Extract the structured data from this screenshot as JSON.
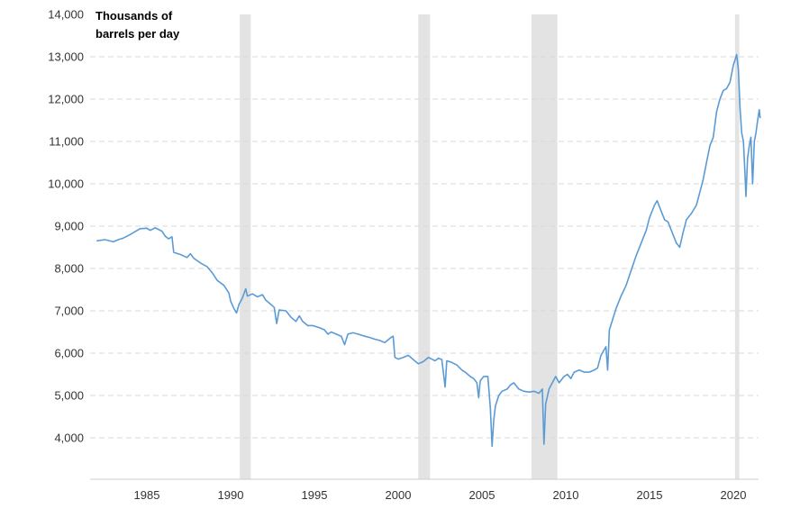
{
  "chart_data": {
    "type": "line",
    "title": "",
    "unit_label_line1": "Thousands of",
    "unit_label_line2": "barrels per day",
    "ylim": [
      3000,
      14000
    ],
    "xlim": [
      1982.0,
      2021.6
    ],
    "y_ticks": [
      {
        "value": 14000,
        "label": "14,000"
      },
      {
        "value": 13000,
        "label": "13,000"
      },
      {
        "value": 12000,
        "label": "12,000"
      },
      {
        "value": 11000,
        "label": "11,000"
      },
      {
        "value": 10000,
        "label": "10,000"
      },
      {
        "value": 9000,
        "label": "9,000"
      },
      {
        "value": 8000,
        "label": "8,000"
      },
      {
        "value": 7000,
        "label": "7,000"
      },
      {
        "value": 6000,
        "label": "6,000"
      },
      {
        "value": 5000,
        "label": "5,000"
      },
      {
        "value": 4000,
        "label": "4,000"
      }
    ],
    "x_ticks": [
      {
        "value": 1985,
        "label": "1985"
      },
      {
        "value": 1990,
        "label": "1990"
      },
      {
        "value": 1995,
        "label": "1995"
      },
      {
        "value": 2000,
        "label": "2000"
      },
      {
        "value": 2005,
        "label": "2005"
      },
      {
        "value": 2010,
        "label": "2010"
      },
      {
        "value": 2015,
        "label": "2015"
      },
      {
        "value": 2020,
        "label": "2020"
      }
    ],
    "grid": true,
    "recessions": [
      {
        "start": 1990.55,
        "end": 1991.2
      },
      {
        "start": 2001.2,
        "end": 2001.9
      },
      {
        "start": 2007.95,
        "end": 2009.5
      },
      {
        "start": 2020.1,
        "end": 2020.35
      }
    ],
    "series": [
      {
        "color": "#5b9bd5",
        "points": [
          [
            1982.0,
            8650
          ],
          [
            1982.5,
            8680
          ],
          [
            1983.0,
            8630
          ],
          [
            1983.3,
            8680
          ],
          [
            1983.6,
            8720
          ],
          [
            1984.0,
            8800
          ],
          [
            1984.3,
            8870
          ],
          [
            1984.6,
            8940
          ],
          [
            1985.0,
            8950
          ],
          [
            1985.2,
            8900
          ],
          [
            1985.5,
            8960
          ],
          [
            1985.9,
            8880
          ],
          [
            1986.1,
            8760
          ],
          [
            1986.3,
            8700
          ],
          [
            1986.5,
            8750
          ],
          [
            1986.6,
            8380
          ],
          [
            1987.0,
            8330
          ],
          [
            1987.4,
            8260
          ],
          [
            1987.6,
            8350
          ],
          [
            1987.8,
            8240
          ],
          [
            1988.2,
            8130
          ],
          [
            1988.6,
            8040
          ],
          [
            1988.9,
            7900
          ],
          [
            1989.2,
            7720
          ],
          [
            1989.6,
            7600
          ],
          [
            1989.9,
            7420
          ],
          [
            1990.0,
            7230
          ],
          [
            1990.2,
            7050
          ],
          [
            1990.35,
            6950
          ],
          [
            1990.5,
            7150
          ],
          [
            1990.7,
            7300
          ],
          [
            1990.9,
            7520
          ],
          [
            1991.0,
            7350
          ],
          [
            1991.3,
            7400
          ],
          [
            1991.6,
            7330
          ],
          [
            1991.9,
            7380
          ],
          [
            1992.1,
            7250
          ],
          [
            1992.4,
            7150
          ],
          [
            1992.6,
            7080
          ],
          [
            1992.75,
            6700
          ],
          [
            1992.9,
            7020
          ],
          [
            1993.3,
            7000
          ],
          [
            1993.6,
            6850
          ],
          [
            1993.9,
            6750
          ],
          [
            1994.1,
            6880
          ],
          [
            1994.3,
            6750
          ],
          [
            1994.6,
            6650
          ],
          [
            1994.9,
            6650
          ],
          [
            1995.3,
            6600
          ],
          [
            1995.6,
            6550
          ],
          [
            1995.8,
            6450
          ],
          [
            1996.0,
            6500
          ],
          [
            1996.3,
            6450
          ],
          [
            1996.6,
            6400
          ],
          [
            1996.8,
            6200
          ],
          [
            1997.0,
            6450
          ],
          [
            1997.3,
            6480
          ],
          [
            1997.6,
            6450
          ],
          [
            1998.0,
            6400
          ],
          [
            1998.3,
            6370
          ],
          [
            1998.6,
            6330
          ],
          [
            1998.9,
            6300
          ],
          [
            1999.2,
            6250
          ],
          [
            1999.5,
            6350
          ],
          [
            1999.7,
            6400
          ],
          [
            1999.8,
            5900
          ],
          [
            2000.0,
            5860
          ],
          [
            2000.3,
            5900
          ],
          [
            2000.6,
            5950
          ],
          [
            2000.9,
            5850
          ],
          [
            2001.2,
            5750
          ],
          [
            2001.5,
            5800
          ],
          [
            2001.8,
            5900
          ],
          [
            2002.0,
            5860
          ],
          [
            2002.2,
            5820
          ],
          [
            2002.4,
            5880
          ],
          [
            2002.6,
            5850
          ],
          [
            2002.8,
            5200
          ],
          [
            2002.9,
            5820
          ],
          [
            2003.2,
            5780
          ],
          [
            2003.5,
            5720
          ],
          [
            2003.8,
            5600
          ],
          [
            2004.0,
            5550
          ],
          [
            2004.3,
            5450
          ],
          [
            2004.5,
            5400
          ],
          [
            2004.7,
            5300
          ],
          [
            2004.8,
            4950
          ],
          [
            2004.9,
            5350
          ],
          [
            2005.1,
            5450
          ],
          [
            2005.35,
            5450
          ],
          [
            2005.5,
            4700
          ],
          [
            2005.6,
            3800
          ],
          [
            2005.7,
            4400
          ],
          [
            2005.8,
            4750
          ],
          [
            2006.0,
            5000
          ],
          [
            2006.2,
            5100
          ],
          [
            2006.5,
            5150
          ],
          [
            2006.7,
            5250
          ],
          [
            2006.9,
            5300
          ],
          [
            2007.2,
            5150
          ],
          [
            2007.5,
            5100
          ],
          [
            2007.8,
            5080
          ],
          [
            2008.1,
            5100
          ],
          [
            2008.4,
            5050
          ],
          [
            2008.6,
            5150
          ],
          [
            2008.7,
            3850
          ],
          [
            2008.8,
            4800
          ],
          [
            2009.0,
            5150
          ],
          [
            2009.2,
            5300
          ],
          [
            2009.4,
            5450
          ],
          [
            2009.6,
            5300
          ],
          [
            2009.9,
            5450
          ],
          [
            2010.1,
            5500
          ],
          [
            2010.3,
            5400
          ],
          [
            2010.5,
            5550
          ],
          [
            2010.8,
            5600
          ],
          [
            2011.1,
            5550
          ],
          [
            2011.4,
            5550
          ],
          [
            2011.7,
            5600
          ],
          [
            2011.9,
            5650
          ],
          [
            2012.1,
            5950
          ],
          [
            2012.4,
            6150
          ],
          [
            2012.5,
            5600
          ],
          [
            2012.6,
            6550
          ],
          [
            2012.8,
            6800
          ],
          [
            2013.0,
            7050
          ],
          [
            2013.3,
            7350
          ],
          [
            2013.6,
            7600
          ],
          [
            2013.9,
            7950
          ],
          [
            2014.2,
            8300
          ],
          [
            2014.5,
            8600
          ],
          [
            2014.8,
            8900
          ],
          [
            2015.0,
            9200
          ],
          [
            2015.3,
            9500
          ],
          [
            2015.45,
            9600
          ],
          [
            2015.7,
            9350
          ],
          [
            2015.9,
            9150
          ],
          [
            2016.1,
            9100
          ],
          [
            2016.3,
            8900
          ],
          [
            2016.6,
            8600
          ],
          [
            2016.8,
            8500
          ],
          [
            2017.0,
            8850
          ],
          [
            2017.2,
            9150
          ],
          [
            2017.5,
            9300
          ],
          [
            2017.8,
            9500
          ],
          [
            2018.0,
            9800
          ],
          [
            2018.2,
            10100
          ],
          [
            2018.4,
            10500
          ],
          [
            2018.6,
            10900
          ],
          [
            2018.8,
            11100
          ],
          [
            2019.0,
            11700
          ],
          [
            2019.2,
            12000
          ],
          [
            2019.4,
            12200
          ],
          [
            2019.6,
            12250
          ],
          [
            2019.8,
            12400
          ],
          [
            2020.0,
            12800
          ],
          [
            2020.2,
            13050
          ],
          [
            2020.3,
            12700
          ],
          [
            2020.4,
            11800
          ],
          [
            2020.5,
            11200
          ],
          [
            2020.6,
            11000
          ],
          [
            2020.7,
            10200
          ],
          [
            2020.75,
            9700
          ],
          [
            2020.85,
            10600
          ],
          [
            2020.95,
            10900
          ],
          [
            2021.05,
            11100
          ],
          [
            2021.15,
            10000
          ],
          [
            2021.25,
            11000
          ],
          [
            2021.35,
            11200
          ],
          [
            2021.45,
            11500
          ],
          [
            2021.55,
            11750
          ],
          [
            2021.6,
            11550
          ]
        ]
      }
    ]
  }
}
